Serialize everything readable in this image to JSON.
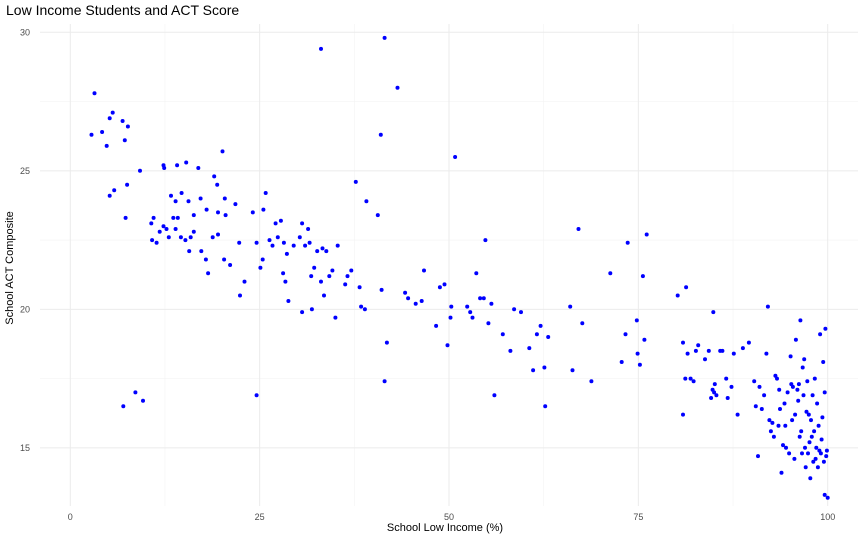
{
  "chart_data": {
    "type": "scatter",
    "title": "Low Income Students and ACT Score",
    "xlabel": "School Low Income (%)",
    "ylabel": "School ACT Composite",
    "xlim": [
      -4,
      104
    ],
    "ylim": [
      12.9,
      30.3
    ],
    "x_ticks": [
      0,
      25,
      50,
      75,
      100
    ],
    "y_ticks": [
      15,
      20,
      25,
      30
    ],
    "grid": true,
    "legend": "none",
    "point_color": "#0000ff",
    "points": [
      [
        3.2,
        27.8
      ],
      [
        5.6,
        27.1
      ],
      [
        5.2,
        26.9
      ],
      [
        7.6,
        26.6
      ],
      [
        4.2,
        26.4
      ],
      [
        2.8,
        26.3
      ],
      [
        7.2,
        26.1
      ],
      [
        4.8,
        25.9
      ],
      [
        6.9,
        26.8
      ],
      [
        7.5,
        24.5
      ],
      [
        5.8,
        24.3
      ],
      [
        5.2,
        24.1
      ],
      [
        9.2,
        25.0
      ],
      [
        12.3,
        25.2
      ],
      [
        12.4,
        25.1
      ],
      [
        13.3,
        24.1
      ],
      [
        13.9,
        23.9
      ],
      [
        14.7,
        24.2
      ],
      [
        14.1,
        25.2
      ],
      [
        15.3,
        25.3
      ],
      [
        16.9,
        25.1
      ],
      [
        19.0,
        24.8
      ],
      [
        19.4,
        24.5
      ],
      [
        20.1,
        25.7
      ],
      [
        17.2,
        24.0
      ],
      [
        18.0,
        23.6
      ],
      [
        19.5,
        23.5
      ],
      [
        20.4,
        24.0
      ],
      [
        20.5,
        23.4
      ],
      [
        15.6,
        23.9
      ],
      [
        16.3,
        23.4
      ],
      [
        13.6,
        23.3
      ],
      [
        14.2,
        23.3
      ],
      [
        10.7,
        23.1
      ],
      [
        11.0,
        23.3
      ],
      [
        12.3,
        23.0
      ],
      [
        12.7,
        22.9
      ],
      [
        14.6,
        22.6
      ],
      [
        15.2,
        22.5
      ],
      [
        15.7,
        22.1
      ],
      [
        16.3,
        22.8
      ],
      [
        17.3,
        22.1
      ],
      [
        17.9,
        21.8
      ],
      [
        18.2,
        21.3
      ],
      [
        18.8,
        22.6
      ],
      [
        19.5,
        22.7
      ],
      [
        20.3,
        21.8
      ],
      [
        21.1,
        21.6
      ],
      [
        10.8,
        22.5
      ],
      [
        11.4,
        22.4
      ],
      [
        11.8,
        22.8
      ],
      [
        13.0,
        22.6
      ],
      [
        13.9,
        22.9
      ],
      [
        15.9,
        22.6
      ],
      [
        7.3,
        23.3
      ],
      [
        21.8,
        23.8
      ],
      [
        22.3,
        22.4
      ],
      [
        23.0,
        21.0
      ],
      [
        22.4,
        20.5
      ],
      [
        24.1,
        23.5
      ],
      [
        24.6,
        22.4
      ],
      [
        25.1,
        21.5
      ],
      [
        25.4,
        21.8
      ],
      [
        25.5,
        23.6
      ],
      [
        25.8,
        24.2
      ],
      [
        26.3,
        22.5
      ],
      [
        26.7,
        22.3
      ],
      [
        27.1,
        23.1
      ],
      [
        27.4,
        22.6
      ],
      [
        27.8,
        23.2
      ],
      [
        28.2,
        22.4
      ],
      [
        28.6,
        22.0
      ],
      [
        28.1,
        21.3
      ],
      [
        28.4,
        21.0
      ],
      [
        28.8,
        20.3
      ],
      [
        29.5,
        22.3
      ],
      [
        30.3,
        22.6
      ],
      [
        30.6,
        23.1
      ],
      [
        31.0,
        22.3
      ],
      [
        31.4,
        22.9
      ],
      [
        31.6,
        22.4
      ],
      [
        31.8,
        21.2
      ],
      [
        32.2,
        21.5
      ],
      [
        32.6,
        22.1
      ],
      [
        33.1,
        21.0
      ],
      [
        33.3,
        22.2
      ],
      [
        33.8,
        22.1
      ],
      [
        34.2,
        21.2
      ],
      [
        34.6,
        21.4
      ],
      [
        35.3,
        22.3
      ],
      [
        30.6,
        19.9
      ],
      [
        31.9,
        20.0
      ],
      [
        33.5,
        20.5
      ],
      [
        35.0,
        19.7
      ],
      [
        36.3,
        20.9
      ],
      [
        36.6,
        21.2
      ],
      [
        37.1,
        21.4
      ],
      [
        38.2,
        20.8
      ],
      [
        38.4,
        20.1
      ],
      [
        38.9,
        20.0
      ],
      [
        37.7,
        24.6
      ],
      [
        39.1,
        23.9
      ],
      [
        40.6,
        23.4
      ],
      [
        41.1,
        20.7
      ],
      [
        41.8,
        18.8
      ],
      [
        41.5,
        17.4
      ],
      [
        41.0,
        26.3
      ],
      [
        33.1,
        29.4
      ],
      [
        41.5,
        29.8
      ],
      [
        43.2,
        28.0
      ],
      [
        44.2,
        20.6
      ],
      [
        44.6,
        20.4
      ],
      [
        45.6,
        20.2
      ],
      [
        46.4,
        20.3
      ],
      [
        46.7,
        21.4
      ],
      [
        48.3,
        19.4
      ],
      [
        48.8,
        20.8
      ],
      [
        49.4,
        20.9
      ],
      [
        49.8,
        18.7
      ],
      [
        50.2,
        19.7
      ],
      [
        50.3,
        20.1
      ],
      [
        50.8,
        25.5
      ],
      [
        52.4,
        20.1
      ],
      [
        52.8,
        19.9
      ],
      [
        53.1,
        19.7
      ],
      [
        53.6,
        21.3
      ],
      [
        54.1,
        20.4
      ],
      [
        54.6,
        20.4
      ],
      [
        54.8,
        22.5
      ],
      [
        55.2,
        19.5
      ],
      [
        55.6,
        20.2
      ],
      [
        56.0,
        16.9
      ],
      [
        57.1,
        19.1
      ],
      [
        58.1,
        18.5
      ],
      [
        58.6,
        20.0
      ],
      [
        59.5,
        19.9
      ],
      [
        60.6,
        18.6
      ],
      [
        61.1,
        17.8
      ],
      [
        61.6,
        19.1
      ],
      [
        62.1,
        19.4
      ],
      [
        62.6,
        17.9
      ],
      [
        62.7,
        16.5
      ],
      [
        63.1,
        19.0
      ],
      [
        66.0,
        20.1
      ],
      [
        66.3,
        17.8
      ],
      [
        67.1,
        22.9
      ],
      [
        67.6,
        19.5
      ],
      [
        68.8,
        17.4
      ],
      [
        71.3,
        21.3
      ],
      [
        72.8,
        18.1
      ],
      [
        73.3,
        19.1
      ],
      [
        73.6,
        22.4
      ],
      [
        74.8,
        19.6
      ],
      [
        74.9,
        18.4
      ],
      [
        75.2,
        18.0
      ],
      [
        75.6,
        21.2
      ],
      [
        75.8,
        18.9
      ],
      [
        76.1,
        22.7
      ],
      [
        80.2,
        20.5
      ],
      [
        80.9,
        18.8
      ],
      [
        81.3,
        20.8
      ],
      [
        81.2,
        17.5
      ],
      [
        81.5,
        18.4
      ],
      [
        81.9,
        17.5
      ],
      [
        82.3,
        17.4
      ],
      [
        82.6,
        18.5
      ],
      [
        82.9,
        18.7
      ],
      [
        83.8,
        18.2
      ],
      [
        84.3,
        18.5
      ],
      [
        84.9,
        19.9
      ],
      [
        84.8,
        17.1
      ],
      [
        85.1,
        17.3
      ],
      [
        85.3,
        16.9
      ],
      [
        85.8,
        18.5
      ],
      [
        86.1,
        18.5
      ],
      [
        86.6,
        17.5
      ],
      [
        86.8,
        16.8
      ],
      [
        87.3,
        17.2
      ],
      [
        87.6,
        18.4
      ],
      [
        88.1,
        16.2
      ],
      [
        88.8,
        18.6
      ],
      [
        89.6,
        18.8
      ],
      [
        80.9,
        16.2
      ],
      [
        84.6,
        16.8
      ],
      [
        85.0,
        17.0
      ],
      [
        90.3,
        17.4
      ],
      [
        90.5,
        16.5
      ],
      [
        90.8,
        14.7
      ],
      [
        91.0,
        17.2
      ],
      [
        91.3,
        16.4
      ],
      [
        91.6,
        16.9
      ],
      [
        91.9,
        18.4
      ],
      [
        92.1,
        20.1
      ],
      [
        92.3,
        16.0
      ],
      [
        92.5,
        15.6
      ],
      [
        92.7,
        15.9
      ],
      [
        92.9,
        15.4
      ],
      [
        93.1,
        17.6
      ],
      [
        93.3,
        17.5
      ],
      [
        93.5,
        15.8
      ],
      [
        93.7,
        16.4
      ],
      [
        93.9,
        14.1
      ],
      [
        94.1,
        15.1
      ],
      [
        94.3,
        16.6
      ],
      [
        94.5,
        15.0
      ],
      [
        94.7,
        17.0
      ],
      [
        94.9,
        14.8
      ],
      [
        95.1,
        18.3
      ],
      [
        95.3,
        16.0
      ],
      [
        95.4,
        17.2
      ],
      [
        95.6,
        14.6
      ],
      [
        95.8,
        18.9
      ],
      [
        96.0,
        17.1
      ],
      [
        96.1,
        16.7
      ],
      [
        96.3,
        15.4
      ],
      [
        96.4,
        19.6
      ],
      [
        96.5,
        15.6
      ],
      [
        96.7,
        17.9
      ],
      [
        96.8,
        16.9
      ],
      [
        96.9,
        18.2
      ],
      [
        97.0,
        15.0
      ],
      [
        97.1,
        14.3
      ],
      [
        97.2,
        16.3
      ],
      [
        97.3,
        17.4
      ],
      [
        97.4,
        14.8
      ],
      [
        97.5,
        16.2
      ],
      [
        97.6,
        15.2
      ],
      [
        97.7,
        13.9
      ],
      [
        97.8,
        16.0
      ],
      [
        97.9,
        15.4
      ],
      [
        98.0,
        16.9
      ],
      [
        98.1,
        14.5
      ],
      [
        98.2,
        15.6
      ],
      [
        98.3,
        17.5
      ],
      [
        98.4,
        14.6
      ],
      [
        98.5,
        15.0
      ],
      [
        98.6,
        16.6
      ],
      [
        98.7,
        14.3
      ],
      [
        98.8,
        15.8
      ],
      [
        98.9,
        14.9
      ],
      [
        99.0,
        19.1
      ],
      [
        99.1,
        14.8
      ],
      [
        99.2,
        15.3
      ],
      [
        99.3,
        16.1
      ],
      [
        99.4,
        18.1
      ],
      [
        99.5,
        14.5
      ],
      [
        99.6,
        17.0
      ],
      [
        99.7,
        19.3
      ],
      [
        99.8,
        14.7
      ],
      [
        99.9,
        14.9
      ],
      [
        99.6,
        13.3
      ],
      [
        100.0,
        13.2
      ],
      [
        96.2,
        17.3
      ],
      [
        95.7,
        16.2
      ],
      [
        96.6,
        14.8
      ],
      [
        95.2,
        17.3
      ],
      [
        94.4,
        15.8
      ],
      [
        93.6,
        17.1
      ],
      [
        7.0,
        16.5
      ],
      [
        8.6,
        17.0
      ],
      [
        9.6,
        16.7
      ],
      [
        24.6,
        16.9
      ]
    ]
  }
}
